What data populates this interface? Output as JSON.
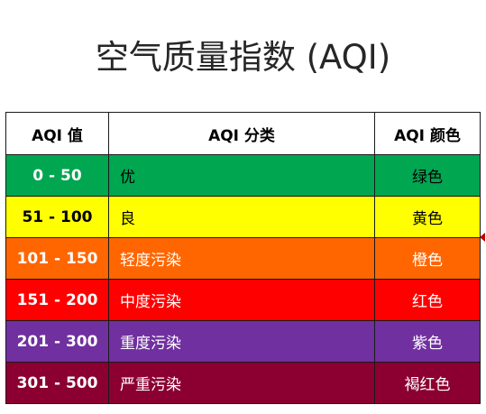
{
  "title": "空气质量指数 (AQI)",
  "table": {
    "headers": [
      "AQI 值",
      "AQI 分类",
      "AQI 颜色"
    ],
    "rows": [
      {
        "range": "0 - 50",
        "category": "优",
        "color_name": "绿色",
        "bg": "#00a650",
        "text_color": "#000000",
        "range_color": "#ffffff"
      },
      {
        "range": "51 - 100",
        "category": "良",
        "color_name": "黄色",
        "bg": "#ffff00",
        "text_color": "#000000",
        "range_color": "#000000"
      },
      {
        "range": "101 - 150",
        "category": "轻度污染",
        "color_name": "橙色",
        "bg": "#ff6600",
        "text_color": "#ffffff",
        "range_color": "#ffffff"
      },
      {
        "range": "151 - 200",
        "category": "中度污染",
        "color_name": "红色",
        "bg": "#ff0000",
        "text_color": "#ffffff",
        "range_color": "#ffffff"
      },
      {
        "range": "201 - 300",
        "category": "重度污染",
        "color_name": "紫色",
        "bg": "#7030a0",
        "text_color": "#ffffff",
        "range_color": "#ffffff"
      },
      {
        "range": "301 - 500",
        "category": "严重污染",
        "color_name": "褐红色",
        "bg": "#8b0030",
        "text_color": "#ffffff",
        "range_color": "#ffffff"
      }
    ]
  }
}
